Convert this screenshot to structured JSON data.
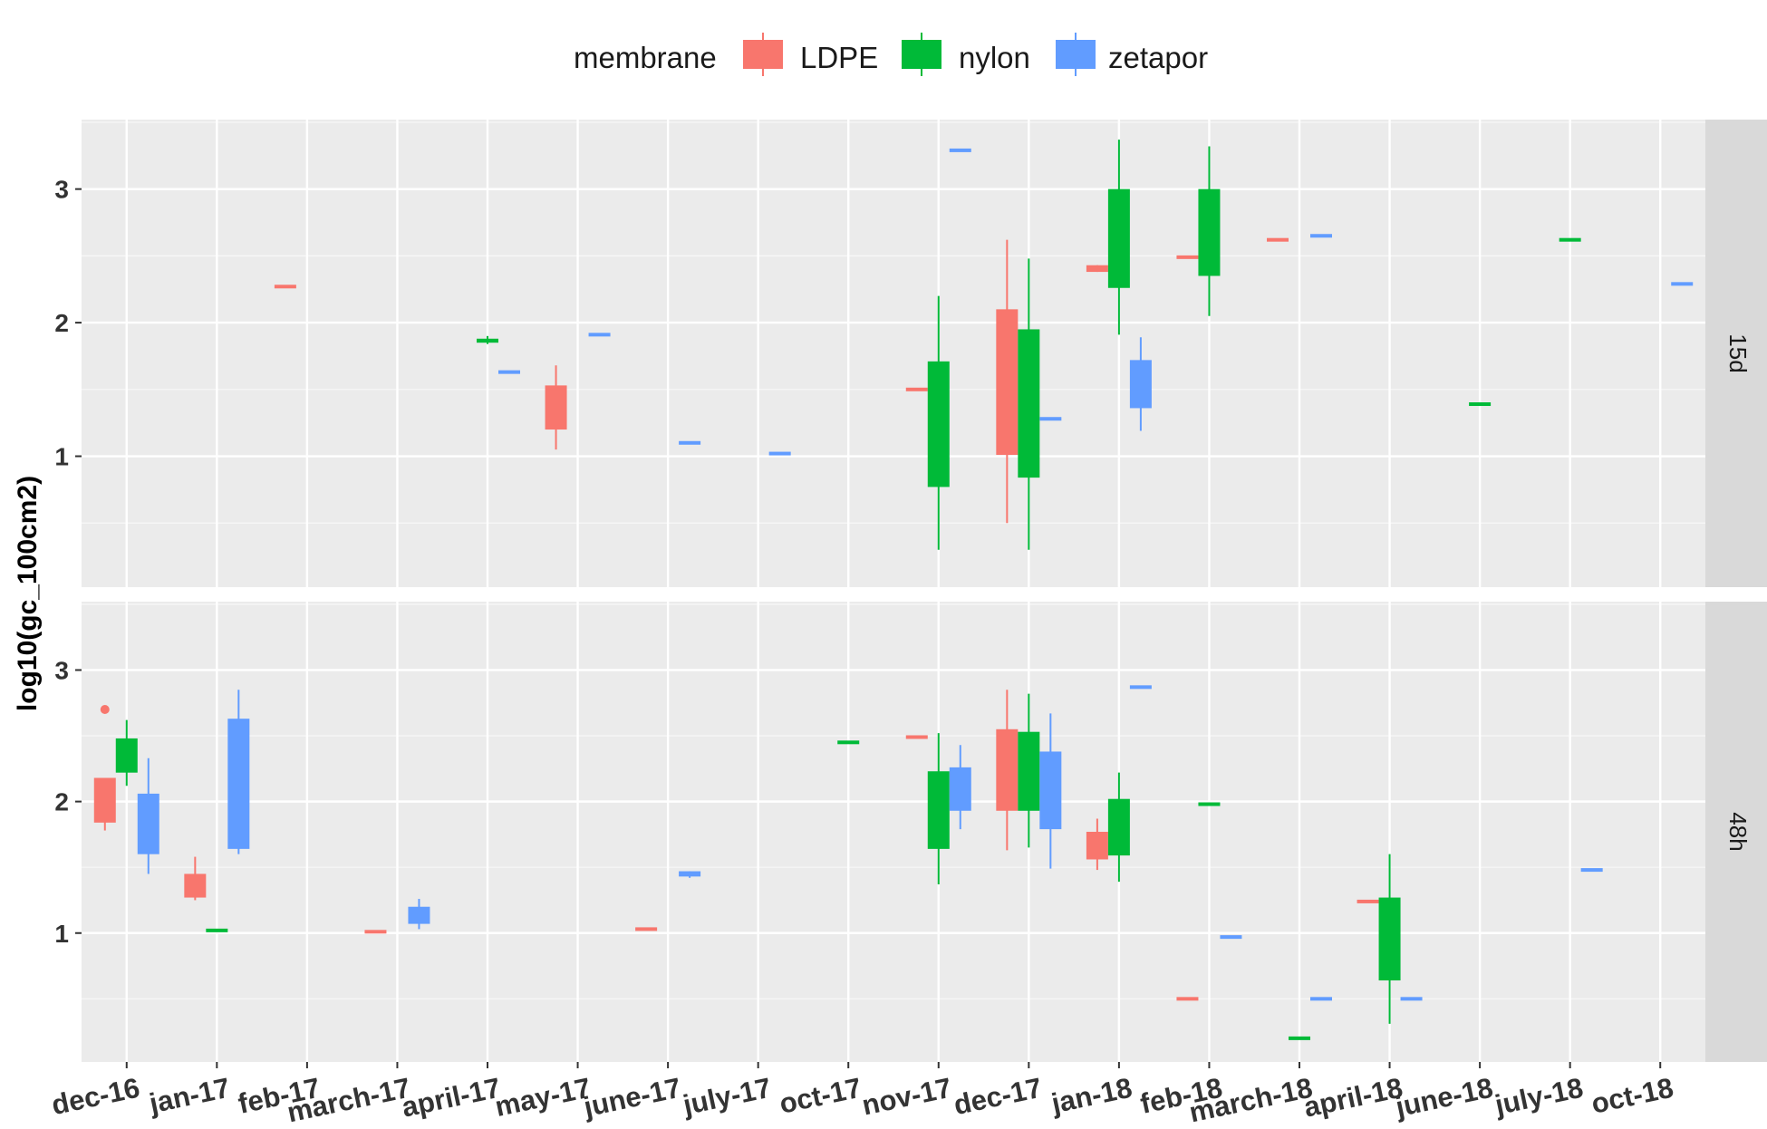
{
  "chart_data": {
    "type": "boxplot",
    "legend": {
      "title": "membrane",
      "position": "top",
      "entries": [
        {
          "name": "LDPE",
          "color": "#F8766D"
        },
        {
          "name": "nylon",
          "color": "#00BA38"
        },
        {
          "name": "zetapor",
          "color": "#619CFF"
        }
      ]
    },
    "ylabel": "log10(gc_100cm2)",
    "xlabel": "",
    "categories": [
      "dec-16",
      "jan-17",
      "feb-17",
      "march-17",
      "april-17",
      "may-17",
      "june-17",
      "july-17",
      "oct-17",
      "nov-17",
      "dec-17",
      "jan-18",
      "feb-18",
      "march-18",
      "april-18",
      "june-18",
      "july-18",
      "oct-18"
    ],
    "y_ticks": [
      1,
      2,
      3
    ],
    "ylim": [
      0.02,
      3.52
    ],
    "grid": true,
    "panels": [
      {
        "label": "15d",
        "boxes": [
          {
            "category": "feb-17",
            "series": "LDPE",
            "min": 2.27,
            "q1": 2.27,
            "median": 2.27,
            "q3": 2.27,
            "max": 2.27
          },
          {
            "category": "april-17",
            "series": "nylon",
            "min": 1.84,
            "q1": 1.85,
            "median": 1.87,
            "q3": 1.88,
            "max": 1.9
          },
          {
            "category": "april-17",
            "series": "zetapor",
            "min": 1.63,
            "q1": 1.63,
            "median": 1.63,
            "q3": 1.63,
            "max": 1.63
          },
          {
            "category": "may-17",
            "series": "LDPE",
            "min": 1.05,
            "q1": 1.2,
            "median": 1.35,
            "q3": 1.53,
            "max": 1.68
          },
          {
            "category": "may-17",
            "series": "zetapor",
            "min": 1.91,
            "q1": 1.91,
            "median": 1.91,
            "q3": 1.91,
            "max": 1.91
          },
          {
            "category": "june-17",
            "series": "zetapor",
            "min": 1.1,
            "q1": 1.1,
            "median": 1.1,
            "q3": 1.1,
            "max": 1.1
          },
          {
            "category": "july-17",
            "series": "zetapor",
            "min": 1.02,
            "q1": 1.02,
            "median": 1.02,
            "q3": 1.02,
            "max": 1.02
          },
          {
            "category": "nov-17",
            "series": "LDPE",
            "min": 1.5,
            "q1": 1.5,
            "median": 1.5,
            "q3": 1.5,
            "max": 1.5
          },
          {
            "category": "nov-17",
            "series": "nylon",
            "min": 0.3,
            "q1": 0.77,
            "median": 1.3,
            "q3": 1.71,
            "max": 2.2
          },
          {
            "category": "nov-17",
            "series": "zetapor",
            "min": 3.29,
            "q1": 3.29,
            "median": 3.29,
            "q3": 3.29,
            "max": 3.29
          },
          {
            "category": "dec-17",
            "series": "LDPE",
            "min": 0.5,
            "q1": 1.01,
            "median": 1.55,
            "q3": 2.1,
            "max": 2.62
          },
          {
            "category": "dec-17",
            "series": "nylon",
            "min": 0.3,
            "q1": 0.84,
            "median": 1.4,
            "q3": 1.95,
            "max": 2.48
          },
          {
            "category": "dec-17",
            "series": "zetapor",
            "min": 1.28,
            "q1": 1.28,
            "median": 1.28,
            "q3": 1.28,
            "max": 1.28
          },
          {
            "category": "jan-18",
            "series": "LDPE",
            "min": 2.38,
            "q1": 2.38,
            "median": 2.41,
            "q3": 2.43,
            "max": 2.43
          },
          {
            "category": "jan-18",
            "series": "nylon",
            "min": 1.91,
            "q1": 2.26,
            "median": 2.6,
            "q3": 3.0,
            "max": 3.37
          },
          {
            "category": "jan-18",
            "series": "zetapor",
            "min": 1.19,
            "q1": 1.36,
            "median": 1.53,
            "q3": 1.72,
            "max": 1.89
          },
          {
            "category": "feb-18",
            "series": "LDPE",
            "min": 2.49,
            "q1": 2.49,
            "median": 2.49,
            "q3": 2.49,
            "max": 2.49
          },
          {
            "category": "feb-18",
            "series": "nylon",
            "min": 2.05,
            "q1": 2.35,
            "median": 2.65,
            "q3": 3.0,
            "max": 3.32
          },
          {
            "category": "march-18",
            "series": "LDPE",
            "min": 2.62,
            "q1": 2.62,
            "median": 2.62,
            "q3": 2.62,
            "max": 2.62
          },
          {
            "category": "march-18",
            "series": "zetapor",
            "min": 2.65,
            "q1": 2.65,
            "median": 2.65,
            "q3": 2.65,
            "max": 2.65
          },
          {
            "category": "june-18",
            "series": "nylon",
            "min": 1.39,
            "q1": 1.39,
            "median": 1.39,
            "q3": 1.39,
            "max": 1.39
          },
          {
            "category": "july-18",
            "series": "nylon",
            "min": 2.62,
            "q1": 2.62,
            "median": 2.62,
            "q3": 2.62,
            "max": 2.62
          },
          {
            "category": "oct-18",
            "series": "zetapor",
            "min": 2.29,
            "q1": 2.29,
            "median": 2.29,
            "q3": 2.29,
            "max": 2.29
          }
        ]
      },
      {
        "label": "48h",
        "boxes": [
          {
            "category": "dec-16",
            "series": "LDPE",
            "min": 1.78,
            "q1": 1.84,
            "median": 2.0,
            "q3": 2.18,
            "max": 2.18,
            "outliers": [
              2.7
            ]
          },
          {
            "category": "dec-16",
            "series": "nylon",
            "min": 2.12,
            "q1": 2.22,
            "median": 2.35,
            "q3": 2.48,
            "max": 2.62
          },
          {
            "category": "dec-16",
            "series": "zetapor",
            "min": 1.45,
            "q1": 1.6,
            "median": 1.85,
            "q3": 2.06,
            "max": 2.33
          },
          {
            "category": "jan-17",
            "series": "LDPE",
            "min": 1.25,
            "q1": 1.27,
            "median": 1.36,
            "q3": 1.45,
            "max": 1.58
          },
          {
            "category": "jan-17",
            "series": "nylon",
            "min": 1.02,
            "q1": 1.02,
            "median": 1.02,
            "q3": 1.02,
            "max": 1.02
          },
          {
            "category": "jan-17",
            "series": "zetapor",
            "min": 1.6,
            "q1": 1.64,
            "median": 2.1,
            "q3": 2.63,
            "max": 2.85
          },
          {
            "category": "march-17",
            "series": "LDPE",
            "min": 1.01,
            "q1": 1.01,
            "median": 1.01,
            "q3": 1.01,
            "max": 1.01
          },
          {
            "category": "march-17",
            "series": "zetapor",
            "min": 1.03,
            "q1": 1.07,
            "median": 1.13,
            "q3": 1.2,
            "max": 1.26
          },
          {
            "category": "june-17",
            "series": "LDPE",
            "min": 1.03,
            "q1": 1.03,
            "median": 1.03,
            "q3": 1.03,
            "max": 1.03
          },
          {
            "category": "june-17",
            "series": "zetapor",
            "min": 1.42,
            "q1": 1.43,
            "median": 1.45,
            "q3": 1.47,
            "max": 1.47
          },
          {
            "category": "oct-17",
            "series": "nylon",
            "min": 2.45,
            "q1": 2.45,
            "median": 2.45,
            "q3": 2.45,
            "max": 2.45
          },
          {
            "category": "nov-17",
            "series": "LDPE",
            "min": 2.49,
            "q1": 2.49,
            "median": 2.49,
            "q3": 2.49,
            "max": 2.49
          },
          {
            "category": "nov-17",
            "series": "nylon",
            "min": 1.37,
            "q1": 1.64,
            "median": 1.95,
            "q3": 2.23,
            "max": 2.52
          },
          {
            "category": "nov-17",
            "series": "zetapor",
            "min": 1.79,
            "q1": 1.93,
            "median": 2.1,
            "q3": 2.26,
            "max": 2.43
          },
          {
            "category": "dec-17",
            "series": "LDPE",
            "min": 1.63,
            "q1": 1.93,
            "median": 2.2,
            "q3": 2.55,
            "max": 2.85
          },
          {
            "category": "dec-17",
            "series": "nylon",
            "min": 1.65,
            "q1": 1.93,
            "median": 2.22,
            "q3": 2.53,
            "max": 2.82
          },
          {
            "category": "dec-17",
            "series": "zetapor",
            "min": 1.49,
            "q1": 1.79,
            "median": 2.05,
            "q3": 2.38,
            "max": 2.67
          },
          {
            "category": "jan-18",
            "series": "LDPE",
            "min": 1.48,
            "q1": 1.56,
            "median": 1.66,
            "q3": 1.77,
            "max": 1.87
          },
          {
            "category": "jan-18",
            "series": "nylon",
            "min": 1.39,
            "q1": 1.59,
            "median": 1.8,
            "q3": 2.02,
            "max": 2.22
          },
          {
            "category": "jan-18",
            "series": "zetapor",
            "min": 2.87,
            "q1": 2.87,
            "median": 2.87,
            "q3": 2.87,
            "max": 2.87
          },
          {
            "category": "feb-18",
            "series": "LDPE",
            "min": 0.5,
            "q1": 0.5,
            "median": 0.5,
            "q3": 0.5,
            "max": 0.5
          },
          {
            "category": "feb-18",
            "series": "nylon",
            "min": 1.98,
            "q1": 1.98,
            "median": 1.98,
            "q3": 1.98,
            "max": 1.98
          },
          {
            "category": "feb-18",
            "series": "zetapor",
            "min": 0.97,
            "q1": 0.97,
            "median": 0.97,
            "q3": 0.97,
            "max": 0.97
          },
          {
            "category": "march-18",
            "series": "nylon",
            "min": 0.2,
            "q1": 0.2,
            "median": 0.2,
            "q3": 0.2,
            "max": 0.2
          },
          {
            "category": "march-18",
            "series": "zetapor",
            "min": 0.5,
            "q1": 0.5,
            "median": 0.5,
            "q3": 0.5,
            "max": 0.5
          },
          {
            "category": "april-18",
            "series": "LDPE",
            "min": 1.24,
            "q1": 1.24,
            "median": 1.24,
            "q3": 1.24,
            "max": 1.24
          },
          {
            "category": "april-18",
            "series": "nylon",
            "min": 0.31,
            "q1": 0.64,
            "median": 0.95,
            "q3": 1.27,
            "max": 1.6
          },
          {
            "category": "april-18",
            "series": "zetapor",
            "min": 0.5,
            "q1": 0.5,
            "median": 0.5,
            "q3": 0.5,
            "max": 0.5
          },
          {
            "category": "july-18",
            "series": "zetapor",
            "min": 1.48,
            "q1": 1.48,
            "median": 1.48,
            "q3": 1.48,
            "max": 1.48
          }
        ]
      }
    ]
  }
}
